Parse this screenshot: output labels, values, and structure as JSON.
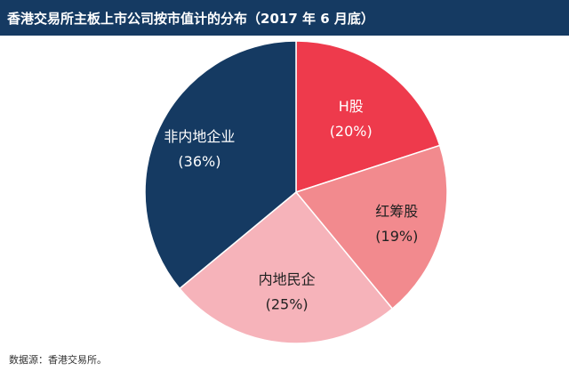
{
  "title": "香港交易所主板上市公司按市值计的分布（2017 年 6 月底）",
  "source": "数据源：香港交易所。",
  "colors": {
    "title_background": "#153a62",
    "title_text": "#ffffff"
  },
  "chart_data": {
    "type": "pie",
    "title": "香港交易所主板上市公司按市值计的分布（2017 年 6 月底）",
    "start": "12 o'clock",
    "direction": "clockwise",
    "slices": [
      {
        "name": "H股",
        "value": 20,
        "label": "(20%)",
        "color": "#ee3a4c",
        "text_color": "#ffffff"
      },
      {
        "name": "红筹股",
        "value": 19,
        "label": "(19%)",
        "color": "#f28a8e",
        "text_color": "#222222"
      },
      {
        "name": "内地民企",
        "value": 25,
        "label": "(25%)",
        "color": "#f6b3ba",
        "text_color": "#222222"
      },
      {
        "name": "非内地企业",
        "value": 36,
        "label": "(36%)",
        "color": "#153a62",
        "text_color": "#ffffff"
      }
    ]
  }
}
